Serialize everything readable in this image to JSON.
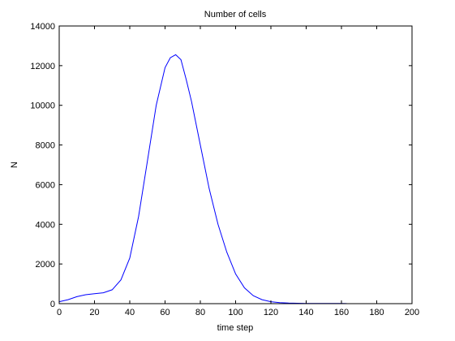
{
  "chart_data": {
    "type": "line",
    "title": "Number of cells",
    "xlabel": "time step",
    "ylabel": "N",
    "xlim": [
      0,
      200
    ],
    "ylim": [
      0,
      14000
    ],
    "xticks": [
      0,
      20,
      40,
      60,
      80,
      100,
      120,
      140,
      160,
      180,
      200
    ],
    "yticks": [
      0,
      2000,
      4000,
      6000,
      8000,
      10000,
      12000,
      14000
    ],
    "grid": false,
    "line_color": "#0000ff",
    "series": [
      {
        "x": [
          0,
          5,
          10,
          15,
          20,
          25,
          30,
          35,
          40,
          45,
          50,
          55,
          60,
          63,
          66,
          69,
          72,
          75,
          80,
          85,
          90,
          95,
          100,
          105,
          110,
          115,
          120,
          125,
          130,
          135,
          140,
          150,
          160,
          163
        ],
        "y": [
          100,
          200,
          350,
          450,
          500,
          550,
          700,
          1200,
          2300,
          4400,
          7200,
          10000,
          11900,
          12400,
          12550,
          12300,
          11300,
          10200,
          8000,
          5800,
          4000,
          2600,
          1500,
          800,
          400,
          200,
          100,
          50,
          30,
          20,
          10,
          10,
          10,
          5
        ]
      }
    ]
  }
}
